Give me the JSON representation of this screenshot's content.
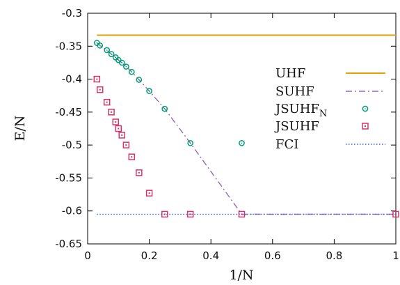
{
  "chart_data": {
    "type": "line",
    "xlabel": "1/N",
    "ylabel": "E/N",
    "xlim": [
      0,
      1
    ],
    "ylim": [
      -0.65,
      -0.3
    ],
    "x_ticks": [
      "0",
      "0.2",
      "0.4",
      "0.6",
      "0.8",
      "1"
    ],
    "y_ticks": [
      "-0.3",
      "-0.35",
      "-0.4",
      "-0.45",
      "-0.5",
      "-0.55",
      "-0.6",
      "-0.65"
    ],
    "grid": false,
    "legend_position": "right",
    "series": [
      {
        "name": "UHF",
        "style": "line",
        "color": "#e69f00",
        "x": [
          0.03,
          1.0
        ],
        "y": [
          -0.3333,
          -0.3333
        ]
      },
      {
        "name": "SUHF",
        "style": "dash-dot",
        "color": "#9467bd",
        "x": [
          0.03,
          0.04,
          0.0625,
          0.0769,
          0.0909,
          0.1,
          0.1111,
          0.125,
          0.1429,
          0.1667,
          0.2,
          0.25,
          0.3333,
          0.5,
          1.0
        ],
        "y": [
          -0.345,
          -0.349,
          -0.356,
          -0.362,
          -0.367,
          -0.371,
          -0.375,
          -0.381,
          -0.389,
          -0.401,
          -0.418,
          -0.445,
          -0.497,
          -0.605,
          -0.605
        ]
      },
      {
        "name": "JSUHF",
        "name_subscript": "N",
        "style": "circle",
        "color": "#009e73",
        "x": [
          0.03,
          0.04,
          0.0625,
          0.0769,
          0.0909,
          0.1,
          0.1111,
          0.125,
          0.1429,
          0.1667,
          0.2,
          0.25,
          0.3333,
          0.5
        ],
        "y": [
          -0.345,
          -0.349,
          -0.356,
          -0.362,
          -0.367,
          -0.371,
          -0.375,
          -0.381,
          -0.389,
          -0.401,
          -0.418,
          -0.445,
          -0.497,
          -0.497
        ]
      },
      {
        "name": "JSUHF",
        "style": "square",
        "color": "#d6336c",
        "x": [
          0.03,
          0.04,
          0.0625,
          0.0769,
          0.0909,
          0.1,
          0.1111,
          0.125,
          0.1429,
          0.1667,
          0.2,
          0.25,
          0.3333,
          0.5,
          1.0
        ],
        "y": [
          -0.4,
          -0.416,
          -0.435,
          -0.45,
          -0.465,
          -0.475,
          -0.485,
          -0.5,
          -0.518,
          -0.542,
          -0.573,
          -0.605,
          -0.605,
          -0.605,
          -0.605
        ]
      },
      {
        "name": "FCI",
        "style": "dotted",
        "color": "#3b5bdb",
        "x": [
          0.03,
          1.0
        ],
        "y": [
          -0.605,
          -0.605
        ]
      }
    ]
  }
}
